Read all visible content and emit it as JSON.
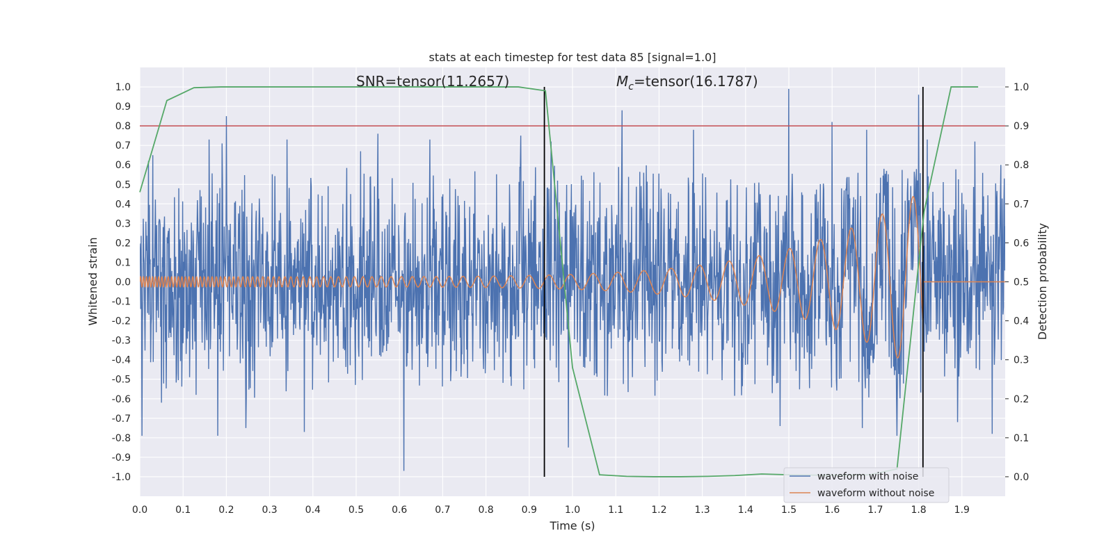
{
  "chart_data": {
    "type": "line",
    "title": "stats at each timestep for test data 85 [signal=1.0]",
    "xlabel": "Time (s)",
    "ylabel": "Whitened strain",
    "y2label": "Detection probability",
    "xlim": [
      0.0,
      2.0
    ],
    "ylim": [
      -1.1,
      1.1
    ],
    "y2lim": [
      -0.05,
      1.05
    ],
    "xticks": [
      "0.0",
      "0.1",
      "0.2",
      "0.3",
      "0.4",
      "0.5",
      "0.6",
      "0.7",
      "0.8",
      "0.9",
      "1.0",
      "1.1",
      "1.2",
      "1.3",
      "1.4",
      "1.5",
      "1.6",
      "1.7",
      "1.8",
      "1.9"
    ],
    "xtick_values": [
      0.0,
      0.1,
      0.2,
      0.3,
      0.4,
      0.5,
      0.6,
      0.7,
      0.8,
      0.9,
      1.0,
      1.1,
      1.2,
      1.3,
      1.4,
      1.5,
      1.6,
      1.7,
      1.8,
      1.9
    ],
    "yticks": [
      "1.0",
      "0.9",
      "0.8",
      "0.7",
      "0.6",
      "0.5",
      "0.4",
      "0.3",
      "0.2",
      "0.1",
      "0.0",
      "-0.1",
      "-0.2",
      "-0.3",
      "-0.4",
      "-0.5",
      "-0.6",
      "-0.7",
      "-0.8",
      "-0.9",
      "-1.0"
    ],
    "ytick_values": [
      1.0,
      0.9,
      0.8,
      0.7,
      0.6,
      0.5,
      0.4,
      0.3,
      0.2,
      0.1,
      0.0,
      -0.1,
      -0.2,
      -0.3,
      -0.4,
      -0.5,
      -0.6,
      -0.7,
      -0.8,
      -0.9,
      -1.0
    ],
    "y2ticks": [
      "1.0",
      "0.9",
      "0.8",
      "0.7",
      "0.6",
      "0.5",
      "0.4",
      "0.3",
      "0.2",
      "0.1",
      "0.0"
    ],
    "y2tick_values": [
      1.0,
      0.9,
      0.8,
      0.7,
      0.6,
      0.5,
      0.4,
      0.3,
      0.2,
      0.1,
      0.0
    ],
    "annotations": {
      "snr": "SNR=tensor(11.2657)",
      "mc_symbol": "M",
      "mc_sub": "c",
      "mc_rest": "=tensor(16.1787)"
    },
    "vlines_x": [
      0.935,
      1.81
    ],
    "threshold_probability": 0.9,
    "grid": true,
    "legend_position": "lower-right",
    "colors": {
      "noisy": "#4c72b0",
      "clean": "#dd8452",
      "probability": "#55a868",
      "threshold": "#c44e52",
      "vline": "#000000",
      "background": "#eaeaf2",
      "grid": "#ffffff"
    },
    "series": [
      {
        "name": "waveform with noise",
        "axis": "left",
        "style": "noisy",
        "sample_rate": 2048,
        "std": 0.27,
        "spikes": [
          [
            0.005,
            -0.79
          ],
          [
            0.02,
            0.62
          ],
          [
            0.03,
            0.65
          ],
          [
            0.05,
            -0.62
          ],
          [
            0.13,
            -0.58
          ],
          [
            0.16,
            0.73
          ],
          [
            0.18,
            -0.79
          ],
          [
            0.19,
            0.71
          ],
          [
            0.2,
            0.85
          ],
          [
            0.245,
            -0.75
          ],
          [
            0.34,
            0.73
          ],
          [
            0.38,
            -0.77
          ],
          [
            0.51,
            0.67
          ],
          [
            0.55,
            0.76
          ],
          [
            0.61,
            -0.97
          ],
          [
            0.67,
            0.73
          ],
          [
            0.88,
            0.75
          ],
          [
            0.95,
            0.72
          ],
          [
            0.99,
            -0.85
          ],
          [
            1.115,
            0.88
          ],
          [
            1.28,
            0.78
          ],
          [
            1.5,
            0.99
          ],
          [
            1.48,
            -0.74
          ],
          [
            1.6,
            0.82
          ],
          [
            1.67,
            -0.75
          ],
          [
            1.68,
            0.78
          ],
          [
            1.75,
            -0.79
          ],
          [
            1.8,
            0.96
          ],
          [
            1.82,
            0.73
          ],
          [
            1.89,
            -0.72
          ],
          [
            1.93,
            0.72
          ],
          [
            1.97,
            -0.78
          ],
          [
            1.99,
            0.6
          ]
        ]
      },
      {
        "name": "waveform without noise",
        "axis": "left",
        "style": "chirp",
        "merger_time": 1.81,
        "peak_amplitude": 0.47,
        "base_amplitude": 0.026,
        "f_start": 14,
        "f_end": 150
      },
      {
        "name": "",
        "axis": "right",
        "style": "probability",
        "x": [
          0.0,
          0.0625,
          0.125,
          0.1875,
          0.25,
          0.3125,
          0.375,
          0.4375,
          0.5,
          0.5625,
          0.625,
          0.6875,
          0.75,
          0.8125,
          0.875,
          0.9375,
          1.0,
          1.0625,
          1.125,
          1.1875,
          1.25,
          1.3125,
          1.375,
          1.4375,
          1.5,
          1.5625,
          1.625,
          1.6875,
          1.75,
          1.8125,
          1.875,
          1.9375
        ],
        "y": [
          0.73,
          0.965,
          0.998,
          1.0,
          1.0,
          1.0,
          1.0,
          1.0,
          1.0,
          1.0,
          1.0,
          1.0,
          1.0,
          1.0,
          1.0,
          0.99,
          0.28,
          0.005,
          0.001,
          0.0,
          0.0,
          0.001,
          0.003,
          0.007,
          0.005,
          0.004,
          0.004,
          0.005,
          0.02,
          0.68,
          1.0,
          1.0
        ]
      }
    ]
  }
}
